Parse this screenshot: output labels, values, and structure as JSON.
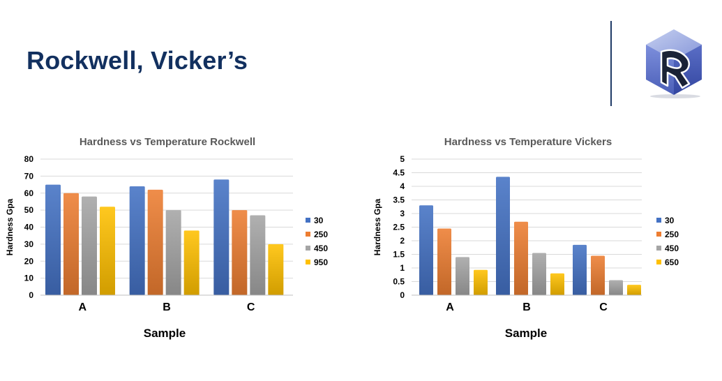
{
  "slide": {
    "title": "Rockwell, Vicker’s"
  },
  "colors": {
    "title": "#12305f",
    "series": [
      "#4472c4",
      "#ed7d31",
      "#a5a5a5",
      "#ffc000"
    ]
  },
  "chart_data": [
    {
      "type": "bar",
      "title": "Hardness vs Temperature Rockwell",
      "xlabel": "Sample",
      "ylabel": "Hardness Gpa",
      "categories": [
        "A",
        "B",
        "C"
      ],
      "ylim": [
        0,
        80
      ],
      "yticks": [
        0,
        10,
        20,
        30,
        40,
        50,
        60,
        70,
        80
      ],
      "grid": true,
      "legend_position": "right",
      "series": [
        {
          "name": "30",
          "values": [
            65,
            64,
            68
          ]
        },
        {
          "name": "250",
          "values": [
            60,
            62,
            50
          ]
        },
        {
          "name": "450",
          "values": [
            58,
            50,
            47
          ]
        },
        {
          "name": "950",
          "values": [
            52,
            38,
            30
          ]
        }
      ]
    },
    {
      "type": "bar",
      "title": "Hardness vs Temperature Vickers",
      "xlabel": "Sample",
      "ylabel": "Hardness Gpa",
      "categories": [
        "A",
        "B",
        "C"
      ],
      "ylim": [
        0,
        5
      ],
      "yticks": [
        0,
        0.5,
        1,
        1.5,
        2,
        2.5,
        3,
        3.5,
        4,
        4.5,
        5
      ],
      "grid": true,
      "legend_position": "right",
      "series": [
        {
          "name": "30",
          "values": [
            3.3,
            4.35,
            1.85
          ]
        },
        {
          "name": "250",
          "values": [
            2.45,
            2.7,
            1.45
          ]
        },
        {
          "name": "450",
          "values": [
            1.4,
            1.55,
            0.55
          ]
        },
        {
          "name": "650",
          "values": [
            0.93,
            0.8,
            0.38
          ]
        }
      ]
    }
  ]
}
